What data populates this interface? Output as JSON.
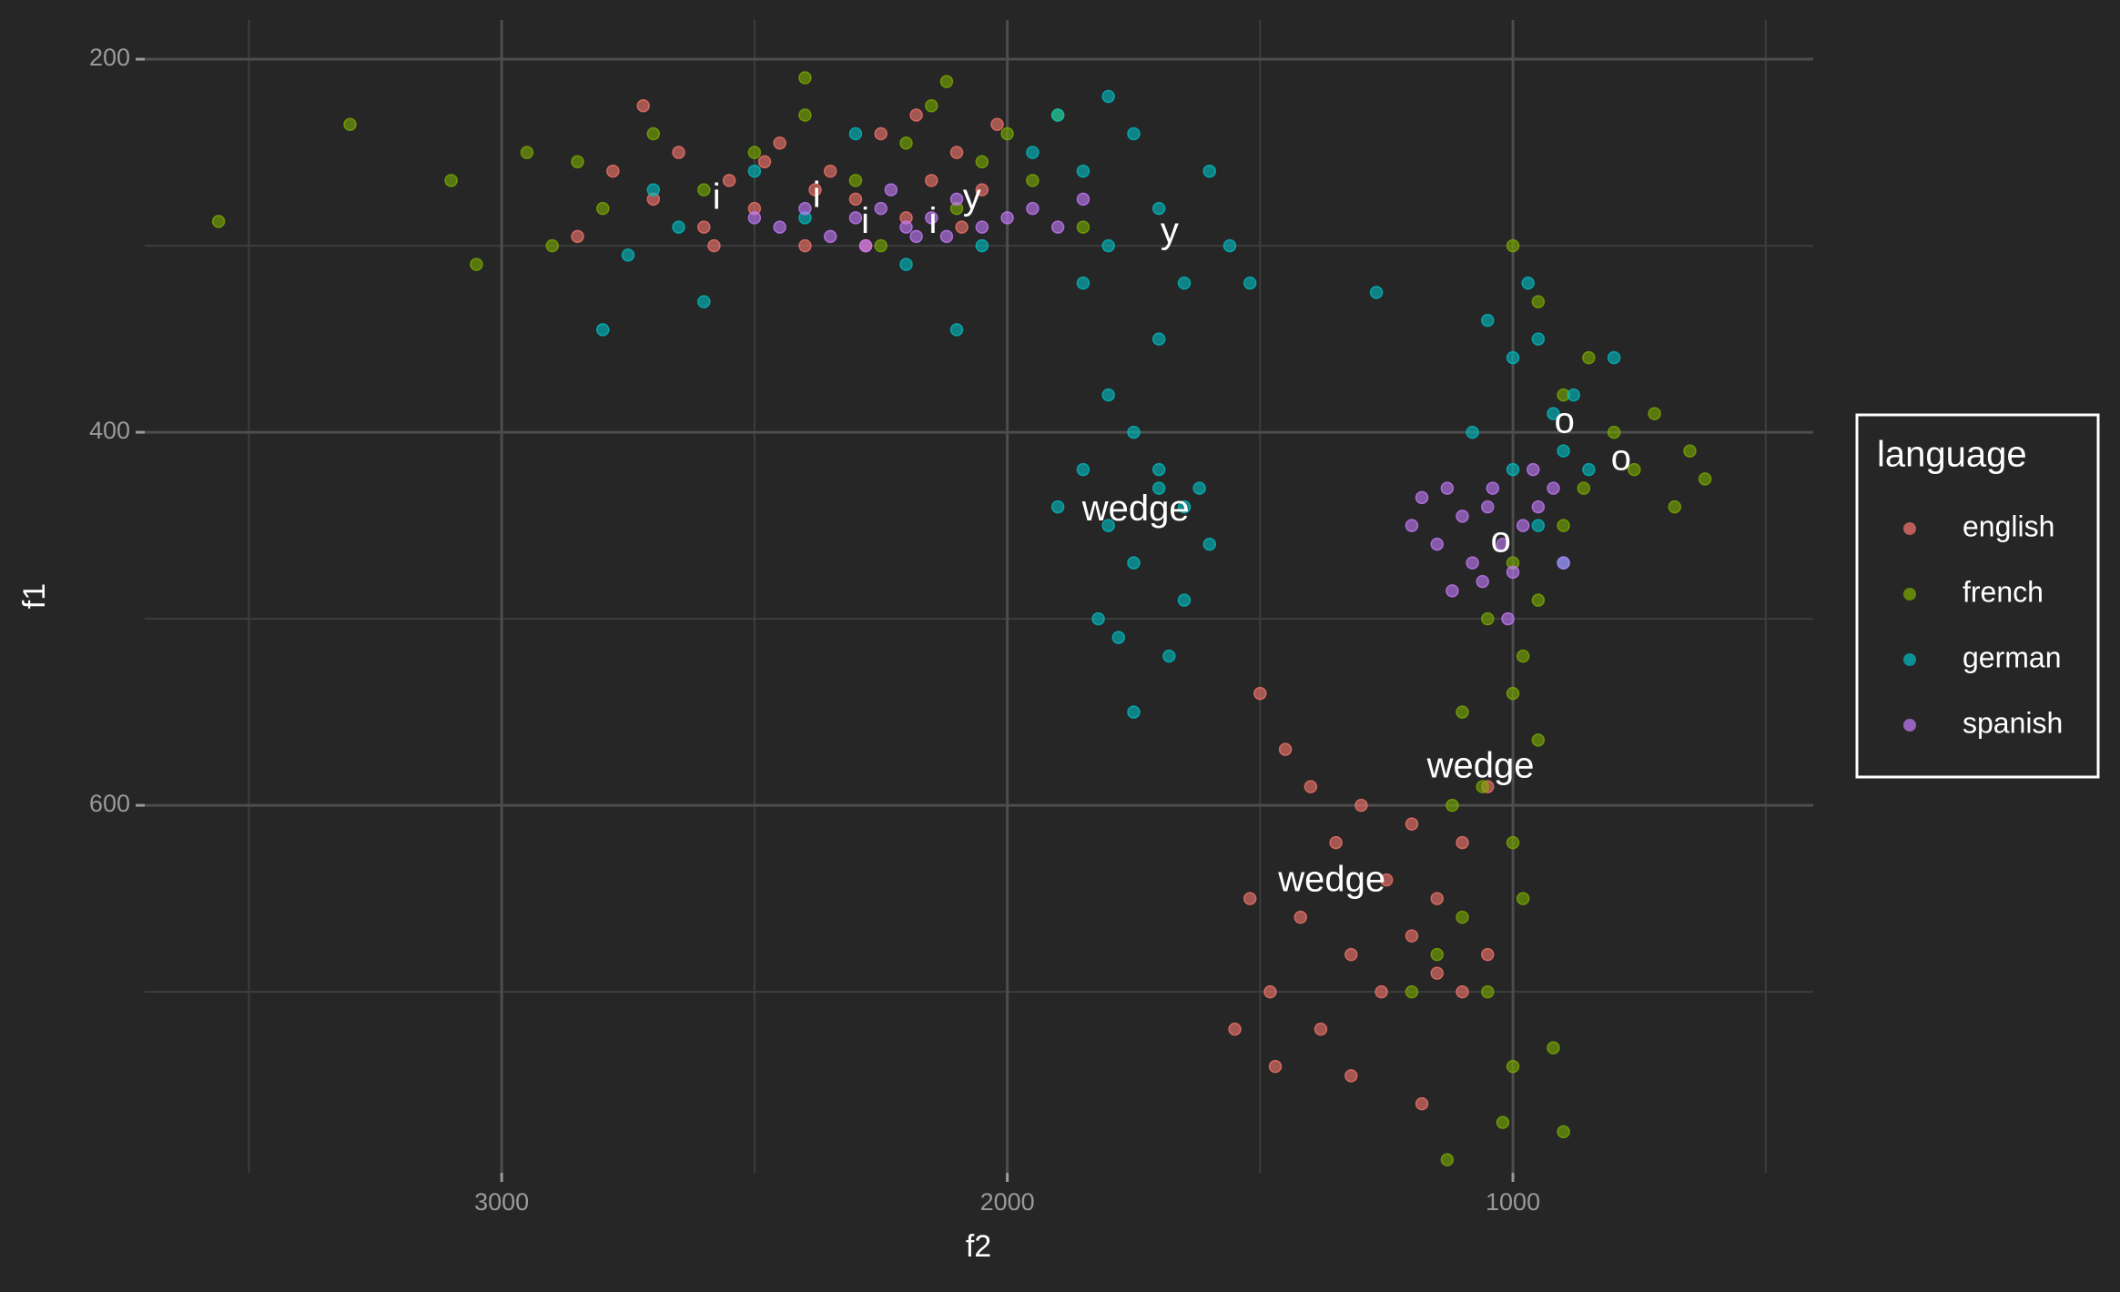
{
  "chart_data": {
    "type": "scatter",
    "x_label": "f2",
    "y_label": "f1",
    "xlim": [
      3706,
      406
    ],
    "ylim": [
      797,
      179
    ],
    "xticks": [
      3000,
      2000,
      1000
    ],
    "yticks": [
      200,
      400,
      600
    ],
    "x_minor_ticks": [
      3500,
      2500,
      1500,
      500
    ],
    "y_minor_ticks": [
      300,
      500,
      700
    ],
    "grid": true,
    "legend_title": "language",
    "legend_position": "right",
    "series": [
      {
        "name": "english",
        "color": "#F8766D",
        "x": [
          2780,
          2700,
          2650,
          2600,
          2550,
          2500,
          2450,
          2400,
          2350,
          2300,
          2250,
          2200,
          2150,
          2100,
          2050,
          2020,
          2850,
          2720,
          2580,
          2480,
          2380,
          2280,
          2180,
          2090,
          1500,
          1450,
          1400,
          1350,
          1300,
          1250,
          1200,
          1150,
          1100,
          1050,
          1480,
          1420,
          1380,
          1320,
          1260,
          1200,
          1150,
          1520,
          1550,
          1470,
          1100,
          1050,
          1180,
          1320
        ],
        "values": [
          260,
          275,
          250,
          290,
          265,
          280,
          245,
          300,
          260,
          275,
          240,
          285,
          265,
          250,
          270,
          235,
          295,
          225,
          300,
          255,
          270,
          300,
          230,
          290,
          540,
          570,
          590,
          620,
          600,
          640,
          610,
          650,
          620,
          680,
          700,
          660,
          720,
          680,
          700,
          670,
          690,
          650,
          720,
          740,
          700,
          590,
          760,
          745
        ]
      },
      {
        "name": "french",
        "color": "#7CAE00",
        "x": [
          3560,
          3300,
          3100,
          3050,
          2950,
          2900,
          2850,
          2800,
          2700,
          2600,
          2500,
          2400,
          2300,
          2200,
          2150,
          2100,
          2050,
          2000,
          1950,
          1900,
          1850,
          2120,
          2400,
          2250,
          1000,
          950,
          900,
          850,
          800,
          760,
          720,
          680,
          650,
          620,
          860,
          900,
          980,
          1000,
          1050,
          950,
          1100,
          1000,
          950,
          1060,
          1120,
          1000,
          980,
          1100,
          1050,
          1000,
          1020,
          920,
          900,
          1130,
          1200,
          1150
        ],
        "values": [
          287,
          235,
          265,
          310,
          250,
          300,
          255,
          280,
          240,
          270,
          250,
          230,
          265,
          245,
          225,
          280,
          255,
          240,
          265,
          230,
          290,
          212,
          210,
          300,
          300,
          330,
          380,
          360,
          400,
          420,
          390,
          440,
          410,
          425,
          430,
          450,
          520,
          470,
          500,
          490,
          550,
          540,
          565,
          590,
          600,
          620,
          650,
          660,
          700,
          740,
          770,
          730,
          775,
          790,
          700,
          680
        ]
      },
      {
        "name": "german",
        "color": "#00BFC4",
        "x": [
          2750,
          2700,
          2650,
          2600,
          2500,
          2400,
          2300,
          2200,
          2100,
          2050,
          1950,
          1900,
          1850,
          1800,
          1750,
          1700,
          1650,
          1600,
          1560,
          1520,
          1850,
          1800,
          1700,
          2800,
          1800,
          1750,
          1700,
          1650,
          1850,
          1800,
          1750,
          1700,
          1650,
          1600,
          1900,
          1820,
          1780,
          1750,
          1680,
          1620,
          1050,
          1000,
          950,
          920,
          900,
          880,
          850,
          1000,
          950,
          900,
          1080,
          800,
          1270,
          970
        ],
        "values": [
          305,
          270,
          290,
          330,
          260,
          285,
          240,
          310,
          345,
          300,
          250,
          230,
          260,
          300,
          240,
          280,
          320,
          260,
          300,
          320,
          320,
          220,
          350,
          345,
          380,
          400,
          420,
          440,
          420,
          450,
          470,
          430,
          490,
          460,
          440,
          500,
          510,
          550,
          520,
          430,
          340,
          360,
          350,
          390,
          410,
          380,
          420,
          420,
          450,
          470,
          400,
          360,
          325,
          320
        ]
      },
      {
        "name": "spanish",
        "color": "#C77CFF",
        "x": [
          2500,
          2450,
          2400,
          2350,
          2300,
          2250,
          2200,
          2150,
          2100,
          2050,
          2000,
          1950,
          1900,
          1850,
          2180,
          2230,
          2280,
          2120,
          1200,
          1150,
          1100,
          1080,
          1050,
          1020,
          1000,
          980,
          950,
          920,
          900,
          1130,
          1060,
          1010,
          960,
          1180,
          1040,
          1120
        ],
        "values": [
          285,
          290,
          280,
          295,
          285,
          280,
          290,
          285,
          275,
          290,
          285,
          280,
          290,
          275,
          295,
          270,
          300,
          295,
          450,
          460,
          445,
          470,
          440,
          460,
          475,
          450,
          440,
          430,
          470,
          430,
          480,
          500,
          420,
          435,
          430,
          485
        ]
      }
    ],
    "annotations": [
      {
        "text": "i",
        "x": 2575,
        "y": 275
      },
      {
        "text": "i",
        "x": 2377,
        "y": 274
      },
      {
        "text": "i",
        "x": 2281,
        "y": 288
      },
      {
        "text": "i",
        "x": 2147,
        "y": 288
      },
      {
        "text": "y",
        "x": 2070,
        "y": 275
      },
      {
        "text": "y",
        "x": 1679,
        "y": 293
      },
      {
        "text": "wedge",
        "x": 1746,
        "y": 442
      },
      {
        "text": "wedge",
        "x": 1064,
        "y": 580
      },
      {
        "text": "wedge",
        "x": 1358,
        "y": 641
      },
      {
        "text": "o",
        "x": 898,
        "y": 395
      },
      {
        "text": "o",
        "x": 786,
        "y": 415
      },
      {
        "text": "o",
        "x": 1024,
        "y": 459
      }
    ]
  }
}
